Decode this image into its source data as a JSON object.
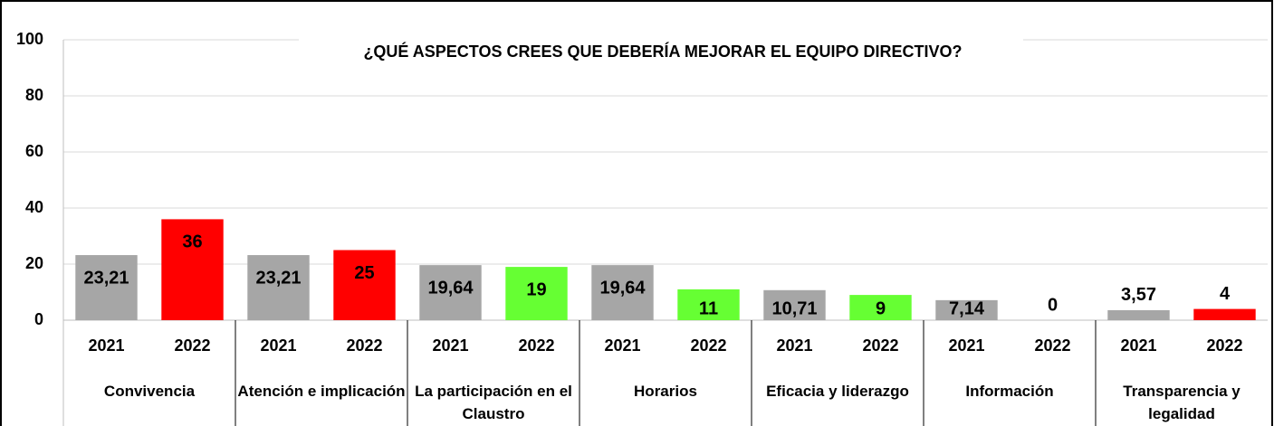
{
  "chart_data": {
    "type": "bar",
    "title": "¿QUÉ ASPECTOS CREES QUE DEBERÍA MEJORAR EL EQUIPO DIRECTIVO?",
    "groups": [
      "Convivencia",
      "Atención e implicación",
      "La participación en el Claustro",
      "Horarios",
      "Eficacia y liderazgo",
      "Información",
      "Transparencia y legalidad"
    ],
    "categories": [
      "2021",
      "2022",
      "2021",
      "2022",
      "2021",
      "2022",
      "2021",
      "2022",
      "2021",
      "2022",
      "2021",
      "2022",
      "2021",
      "2022"
    ],
    "values": [
      23.21,
      36,
      23.21,
      25,
      19.64,
      19,
      19.64,
      11,
      10.71,
      9,
      7.14,
      0,
      3.57,
      4
    ],
    "value_labels": [
      "23,21",
      "36",
      "23,21",
      "25",
      "19,64",
      "19",
      "19,64",
      "11",
      "10,71",
      "9",
      "7,14",
      "0",
      "3,57",
      "4"
    ],
    "colors": [
      "#a6a6a6",
      "#ff0000",
      "#a6a6a6",
      "#ff0000",
      "#a6a6a6",
      "#66ff33",
      "#a6a6a6",
      "#66ff33",
      "#a6a6a6",
      "#66ff33",
      "#a6a6a6",
      "#66ff33",
      "#a6a6a6",
      "#ff0000"
    ],
    "ylim": [
      0,
      100
    ],
    "yticks": [
      0,
      20,
      40,
      60,
      80,
      100
    ],
    "grid": true
  }
}
